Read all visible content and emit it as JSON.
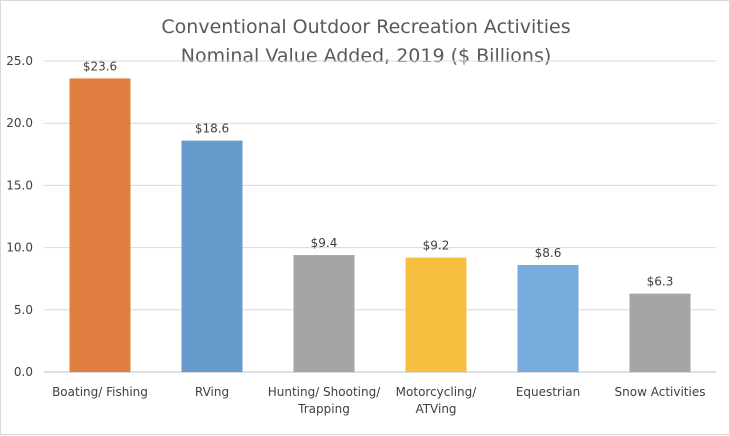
{
  "chart_data": {
    "type": "bar",
    "title_lines": [
      "Conventional Outdoor Recreation Activities",
      "Nominal Value Added, 2019 ($ Billions)"
    ],
    "categories": [
      [
        "Boating/ Fishing"
      ],
      [
        "RVing"
      ],
      [
        "Hunting/ Shooting/",
        "Trapping"
      ],
      [
        "Motorcycling/",
        "ATVing"
      ],
      [
        "Equestrian"
      ],
      [
        "Snow Activities"
      ]
    ],
    "values": [
      23.6,
      18.6,
      9.4,
      9.2,
      8.6,
      6.3
    ],
    "data_labels": [
      "$23.6",
      "$18.6",
      "$9.4",
      "$9.2",
      "$8.6",
      "$6.3"
    ],
    "bar_colors": [
      "#e07f3f",
      "#6699cc",
      "#a5a5a5",
      "#f5bf40",
      "#77abde",
      "#a5a5a5"
    ],
    "y_ticks": [
      "0.0",
      "5.0",
      "10.0",
      "15.0",
      "20.0",
      "25.0"
    ],
    "ylim": [
      0,
      25
    ],
    "grid": true,
    "xlabel": "",
    "ylabel": ""
  }
}
